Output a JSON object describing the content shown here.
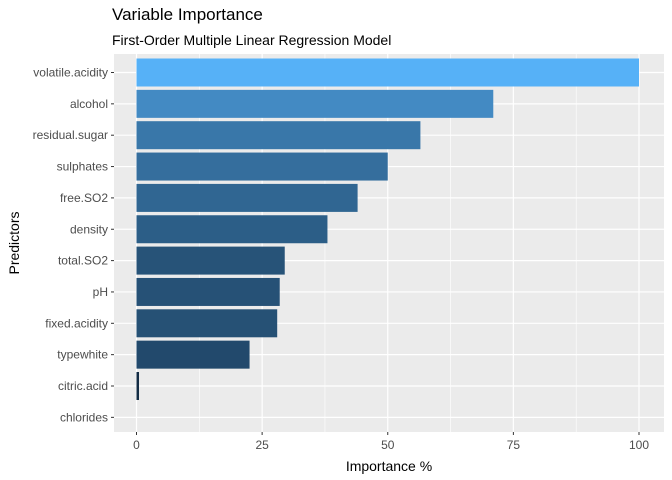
{
  "chart_data": {
    "type": "bar",
    "orientation": "horizontal",
    "title": "Variable Importance",
    "subtitle": "First-Order Multiple Linear Regression Model",
    "xlabel": "Importance %",
    "ylabel": "Predictors",
    "xlim": [
      0,
      100
    ],
    "x_ticks": [
      0,
      25,
      50,
      75,
      100
    ],
    "grid": true,
    "legend": "none",
    "panel_background": "#ebebeb",
    "grid_color": "#ffffff",
    "color_scale": {
      "low": "#132b43",
      "high": "#56b1f7"
    },
    "categories": [
      "volatile.acidity",
      "alcohol",
      "residual.sugar",
      "sulphates",
      "free.SO2",
      "density",
      "total.SO2",
      "pH",
      "fixed.acidity",
      "typewhite",
      "citric.acid",
      "chlorides"
    ],
    "values": [
      100,
      71,
      56.5,
      50,
      44,
      38,
      29.5,
      28.5,
      28,
      22.5,
      0.5,
      0
    ]
  }
}
